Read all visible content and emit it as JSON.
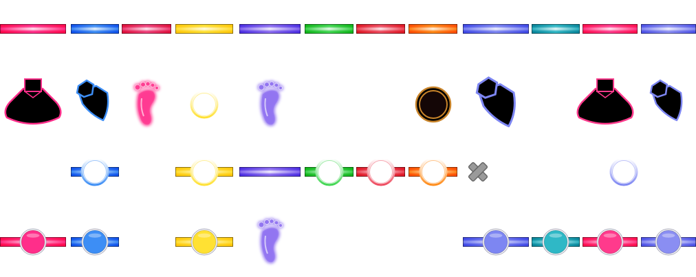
{
  "sheet": {
    "name": "note-lane-sprite-sheet",
    "background": "#ffffff"
  },
  "palette": {
    "pink": "#ff2e8a",
    "sky": "#3d8ef5",
    "rose": "#ee3f7a",
    "yellow": "#ffe133",
    "violet": "#8a6bf0",
    "green": "#3fd650",
    "red": "#ee4a5e",
    "orange": "#ff8a16",
    "periwinkle": "#7d86f2",
    "teal": "#2fb8c6",
    "magenta": "#ff3a8c",
    "lavender": "#8a8ef2",
    "dark": "#000000",
    "amber": "#c9842a",
    "grey": "#9a9a9a"
  },
  "columns": [
    {
      "id": "c1",
      "color": "pink"
    },
    {
      "id": "c2",
      "color": "sky"
    },
    {
      "id": "c3",
      "color": "rose"
    },
    {
      "id": "c4",
      "color": "yellow"
    },
    {
      "id": "c5",
      "color": "violet"
    },
    {
      "id": "c6",
      "color": "green"
    },
    {
      "id": "c7",
      "color": "red"
    },
    {
      "id": "c8",
      "color": "orange"
    },
    {
      "id": "c9",
      "color": "periwinkle"
    },
    {
      "id": "c10",
      "color": "teal"
    },
    {
      "id": "c11",
      "color": "magenta"
    },
    {
      "id": "c12",
      "color": "lavender"
    }
  ],
  "rows": {
    "lane_bars": [
      "c1",
      "c2",
      "c3",
      "c4",
      "c5",
      "c6",
      "c7",
      "c8",
      "c9",
      "c10",
      "c11",
      "c12"
    ],
    "tiles": [
      {
        "col": "c1",
        "kind": "fan-tile",
        "icon": "fan-pedal-icon",
        "color": "pink"
      },
      {
        "col": "c2",
        "kind": "hex-fan-tile",
        "icon": "hex-pedal-icon",
        "color": "sky"
      },
      {
        "col": "c3",
        "kind": "footprint",
        "icon": "footprint-icon",
        "color": "pink"
      },
      {
        "col": "c4",
        "kind": "ring",
        "icon": "ring-icon",
        "color": "yellow"
      },
      {
        "col": "c5",
        "kind": "footprint",
        "icon": "footprint-icon",
        "color": "violet"
      },
      {
        "col": "c8",
        "kind": "dark-disc",
        "icon": "dark-disc-icon",
        "color": "amber"
      },
      {
        "col": "c9",
        "kind": "hex-fan-tile-large",
        "icon": "hex-pedal-icon",
        "color": "periwinkle"
      },
      {
        "col": "c11",
        "kind": "fan-tile",
        "icon": "fan-pedal-icon",
        "color": "magenta"
      },
      {
        "col": "c12",
        "kind": "hex-fan-tile",
        "icon": "hex-pedal-icon",
        "color": "periwinkle"
      }
    ],
    "ring_notes": [
      {
        "col": "c2",
        "bar": true,
        "ring": true,
        "color": "sky"
      },
      {
        "col": "c4",
        "bar": true,
        "ring": true,
        "color": "yellow"
      },
      {
        "col": "c5",
        "bar": true,
        "ring": false,
        "color": "violet"
      },
      {
        "col": "c6",
        "bar": true,
        "ring": true,
        "color": "green"
      },
      {
        "col": "c7",
        "bar": true,
        "ring": true,
        "color": "red"
      },
      {
        "col": "c8",
        "bar": true,
        "ring": true,
        "color": "orange"
      },
      {
        "col": "c9",
        "kind": "cross",
        "icon": "close-x-icon",
        "color": "grey"
      },
      {
        "col": "c11",
        "bar": false,
        "ring": true,
        "color": "periwinkle"
      }
    ],
    "filled_notes": [
      {
        "col": "c1",
        "bar": true,
        "color": "pink"
      },
      {
        "col": "c2",
        "bar": true,
        "color": "sky"
      },
      {
        "col": "c4",
        "bar": true,
        "color": "yellow"
      },
      {
        "col": "c5",
        "kind": "footprint",
        "icon": "footprint-icon",
        "color": "violet"
      },
      {
        "col": "c9",
        "bar": true,
        "color": "periwinkle"
      },
      {
        "col": "c10",
        "bar": true,
        "color": "teal"
      },
      {
        "col": "c11",
        "bar": true,
        "color": "magenta"
      },
      {
        "col": "c12",
        "bar": true,
        "color": "lavender"
      }
    ]
  }
}
